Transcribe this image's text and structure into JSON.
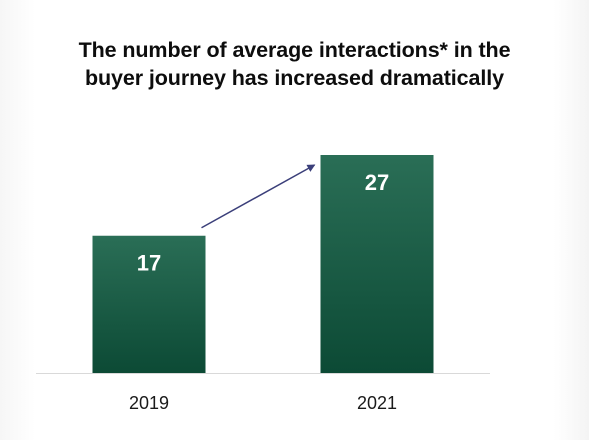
{
  "title_lines": [
    "The number of average interactions* in the",
    "buyer journey has increased dramatically"
  ],
  "chart_data": {
    "type": "bar",
    "title": "The number of average interactions* in the buyer journey has increased dramatically",
    "categories": [
      "2019",
      "2021"
    ],
    "values": [
      17,
      27
    ],
    "data_labels": [
      "17",
      "27"
    ],
    "ylim": [
      0,
      30
    ],
    "grid": false,
    "legend": "none",
    "bar_color_top": "#2a6e56",
    "bar_color_bottom": "#0c4a35",
    "label_color": "#ffffff",
    "arrow": {
      "from": "2019",
      "to": "2021",
      "color": "#3b3f7a"
    }
  }
}
